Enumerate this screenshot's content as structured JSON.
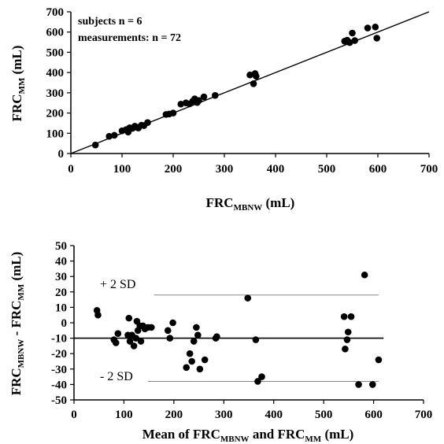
{
  "chart_data": [
    {
      "type": "scatter",
      "title": "",
      "xlabel": {
        "main": "FRC",
        "sub": "MBNW",
        "unit": " (mL)"
      },
      "ylabel": {
        "main": "FRC",
        "sub": "MM",
        "unit": " (mL)"
      },
      "xlim": [
        0,
        700
      ],
      "ylim": [
        0,
        700
      ],
      "xticks": [
        0,
        100,
        200,
        300,
        400,
        500,
        600,
        700
      ],
      "yticks": [
        0,
        100,
        200,
        300,
        400,
        500,
        600,
        700
      ],
      "annotations": [
        "subjects n = 6",
        "measurements: n = 72"
      ],
      "identity_line": true,
      "points": [
        [
          48,
          42
        ],
        [
          75,
          85
        ],
        [
          85,
          90
        ],
        [
          100,
          112
        ],
        [
          108,
          118
        ],
        [
          112,
          106
        ],
        [
          115,
          127
        ],
        [
          120,
          124
        ],
        [
          125,
          135
        ],
        [
          128,
          130
        ],
        [
          132,
          126
        ],
        [
          138,
          140
        ],
        [
          143,
          138
        ],
        [
          150,
          153
        ],
        [
          186,
          193
        ],
        [
          192,
          195
        ],
        [
          200,
          200
        ],
        [
          215,
          244
        ],
        [
          225,
          250
        ],
        [
          232,
          245
        ],
        [
          238,
          258
        ],
        [
          242,
          270
        ],
        [
          247,
          252
        ],
        [
          250,
          262
        ],
        [
          260,
          280
        ],
        [
          282,
          287
        ],
        [
          350,
          388
        ],
        [
          357,
          345
        ],
        [
          360,
          395
        ],
        [
          362,
          382
        ],
        [
          535,
          555
        ],
        [
          540,
          560
        ],
        [
          545,
          548
        ],
        [
          550,
          595
        ],
        [
          555,
          558
        ],
        [
          580,
          620
        ],
        [
          595,
          625
        ],
        [
          598,
          570
        ]
      ]
    },
    {
      "type": "scatter",
      "title": "",
      "xlabel": {
        "main": "Mean of FRC",
        "sub1": "MBNW",
        "mid": " and FRC",
        "sub2": "MM",
        "unit": " (mL)"
      },
      "ylabel": {
        "main": "FRC",
        "sub1": "MBNW",
        "mid": " - FRC",
        "sub2": "MM",
        "unit": " (mL)"
      },
      "xlim": [
        0,
        700
      ],
      "ylim": [
        -50,
        50
      ],
      "xticks": [
        0,
        100,
        200,
        300,
        400,
        500,
        600,
        700
      ],
      "yticks": [
        -50,
        -40,
        -30,
        -20,
        -10,
        0,
        10,
        20,
        30,
        40,
        50
      ],
      "mean_line": -10,
      "upper_sd_line": 18,
      "lower_sd_line": -38,
      "upper_label": "+ 2 SD",
      "lower_label": "- 2 SD",
      "points": [
        [
          46,
          8
        ],
        [
          48,
          5
        ],
        [
          80,
          -11
        ],
        [
          84,
          -13
        ],
        [
          88,
          -7
        ],
        [
          108,
          -8
        ],
        [
          110,
          3
        ],
        [
          112,
          -12
        ],
        [
          116,
          -8
        ],
        [
          120,
          -15
        ],
        [
          124,
          -10
        ],
        [
          126,
          1
        ],
        [
          128,
          -5
        ],
        [
          132,
          -2
        ],
        [
          134,
          -12
        ],
        [
          138,
          -2
        ],
        [
          142,
          -4
        ],
        [
          148,
          -3
        ],
        [
          155,
          -3
        ],
        [
          188,
          -5
        ],
        [
          192,
          -10
        ],
        [
          198,
          0
        ],
        [
          225,
          -29
        ],
        [
          232,
          -20
        ],
        [
          236,
          -25
        ],
        [
          240,
          -12
        ],
        [
          245,
          -3
        ],
        [
          248,
          -8
        ],
        [
          252,
          -30
        ],
        [
          262,
          -24
        ],
        [
          284,
          -10
        ],
        [
          286,
          -9
        ],
        [
          348,
          16
        ],
        [
          364,
          -11
        ],
        [
          368,
          -38
        ],
        [
          376,
          -35
        ],
        [
          541,
          4
        ],
        [
          543,
          -17
        ],
        [
          547,
          -11
        ],
        [
          549,
          -6
        ],
        [
          555,
          4
        ],
        [
          570,
          -40
        ],
        [
          582,
          31
        ],
        [
          598,
          -40
        ],
        [
          610,
          -24
        ]
      ]
    }
  ]
}
